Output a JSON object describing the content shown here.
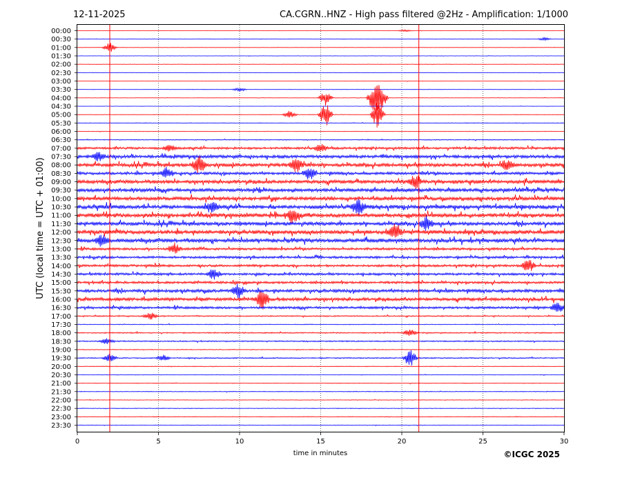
{
  "chart_data": {
    "type": "line",
    "date": "12-11-2025",
    "title": "CA.CGRN..HNZ - High pass filtered @2Hz - Amplification: 1/1000",
    "xlabel": "time in minutes",
    "ylabel": "UTC (local time = UTC + 01:00)",
    "copyright": "©ICGC 2025",
    "xlim": [
      0,
      30
    ],
    "xticks": [
      0,
      5,
      10,
      15,
      20,
      25,
      30
    ],
    "vertical_gridlines_at": [
      5,
      10,
      15,
      20,
      25
    ],
    "grid": "dotted vertical",
    "trace_colors": [
      "#ff0000",
      "#0000ff"
    ],
    "row_labels": [
      "00:00",
      "00:30",
      "01:00",
      "01:30",
      "02:00",
      "02:30",
      "03:00",
      "03:30",
      "04:00",
      "04:30",
      "05:00",
      "05:30",
      "06:00",
      "06:30",
      "07:00",
      "07:30",
      "08:00",
      "08:30",
      "09:00",
      "09:30",
      "10:00",
      "10:30",
      "11:00",
      "11:30",
      "12:00",
      "12:30",
      "13:00",
      "13:30",
      "14:00",
      "14:30",
      "15:00",
      "15:30",
      "16:00",
      "16:30",
      "17:00",
      "17:30",
      "18:00",
      "18:30",
      "19:00",
      "19:30",
      "20:00",
      "20:30",
      "21:00",
      "21:30",
      "22:00",
      "22:30",
      "23:00",
      "23:30"
    ],
    "noise_level_by_row": [
      0.2,
      0.2,
      0.2,
      0.2,
      0.2,
      0.2,
      0.2,
      0.2,
      0.2,
      0.2,
      0.2,
      0.3,
      0.3,
      0.4,
      1.2,
      1.6,
      1.8,
      1.4,
      1.8,
      1.8,
      1.8,
      2.0,
      2.0,
      1.8,
      2.0,
      2.0,
      1.2,
      1.2,
      1.2,
      1.2,
      1.2,
      1.6,
      1.6,
      1.2,
      0.6,
      0.4,
      0.6,
      0.6,
      0.4,
      0.6,
      0.3,
      0.3,
      0.3,
      0.3,
      0.3,
      0.3,
      0.3,
      0.3
    ],
    "events": [
      {
        "row": "00:00",
        "minute": 20.2,
        "amplitude": 0.2
      },
      {
        "row": "00:30",
        "minute": 28.8,
        "amplitude": 0.3
      },
      {
        "row": "01:00",
        "minute": 2.0,
        "amplitude": 1.0
      },
      {
        "row": "03:30",
        "minute": 10.0,
        "amplitude": 0.4
      },
      {
        "row": "04:00",
        "minute": 15.3,
        "amplitude": 1.5
      },
      {
        "row": "04:00",
        "minute": 18.3,
        "amplitude": 3.0
      },
      {
        "row": "04:00",
        "minute": 18.7,
        "amplitude": 2.5
      },
      {
        "row": "05:00",
        "minute": 13.1,
        "amplitude": 0.8
      },
      {
        "row": "05:00",
        "minute": 15.3,
        "amplitude": 2.5
      },
      {
        "row": "05:00",
        "minute": 18.5,
        "amplitude": 2.8
      },
      {
        "row": "07:00",
        "minute": 5.7,
        "amplitude": 0.6
      },
      {
        "row": "07:00",
        "minute": 15.0,
        "amplitude": 0.8
      },
      {
        "row": "07:30",
        "minute": 1.3,
        "amplitude": 1.0
      },
      {
        "row": "08:00",
        "minute": 7.5,
        "amplitude": 1.8
      },
      {
        "row": "08:00",
        "minute": 13.5,
        "amplitude": 1.5
      },
      {
        "row": "08:00",
        "minute": 26.5,
        "amplitude": 1.2
      },
      {
        "row": "08:30",
        "minute": 5.5,
        "amplitude": 1.2
      },
      {
        "row": "08:30",
        "minute": 14.3,
        "amplitude": 1.2
      },
      {
        "row": "09:00",
        "minute": 20.8,
        "amplitude": 1.5
      },
      {
        "row": "10:30",
        "minute": 8.3,
        "amplitude": 1.2
      },
      {
        "row": "10:30",
        "minute": 17.3,
        "amplitude": 1.5
      },
      {
        "row": "11:00",
        "minute": 13.3,
        "amplitude": 1.5
      },
      {
        "row": "11:30",
        "minute": 21.5,
        "amplitude": 1.5
      },
      {
        "row": "12:00",
        "minute": 19.6,
        "amplitude": 1.5
      },
      {
        "row": "12:30",
        "minute": 1.5,
        "amplitude": 1.2
      },
      {
        "row": "13:00",
        "minute": 6.0,
        "amplitude": 1.2
      },
      {
        "row": "14:00",
        "minute": 27.8,
        "amplitude": 1.5
      },
      {
        "row": "14:30",
        "minute": 8.4,
        "amplitude": 1.2
      },
      {
        "row": "15:30",
        "minute": 9.9,
        "amplitude": 1.5
      },
      {
        "row": "16:00",
        "minute": 11.4,
        "amplitude": 2.0
      },
      {
        "row": "16:30",
        "minute": 29.6,
        "amplitude": 1.0
      },
      {
        "row": "17:00",
        "minute": 4.5,
        "amplitude": 0.8
      },
      {
        "row": "18:00",
        "minute": 20.5,
        "amplitude": 0.8
      },
      {
        "row": "18:30",
        "minute": 1.8,
        "amplitude": 0.6
      },
      {
        "row": "19:30",
        "minute": 20.5,
        "amplitude": 1.8
      },
      {
        "row": "19:30",
        "minute": 5.3,
        "amplitude": 0.6
      },
      {
        "row": "19:30",
        "minute": 2.0,
        "amplitude": 0.8
      }
    ],
    "vertical_spikes": [
      {
        "minute": 2.0,
        "color": "#ff0000"
      },
      {
        "minute": 21.05,
        "color": "#ff0000"
      }
    ]
  }
}
